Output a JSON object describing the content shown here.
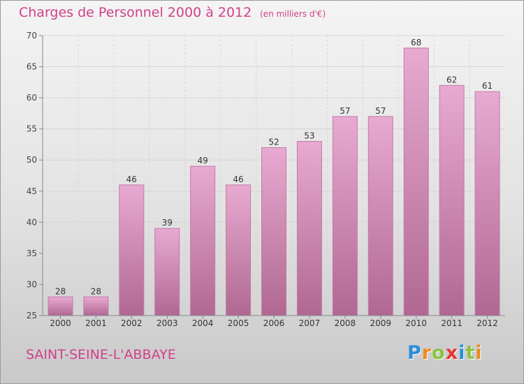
{
  "header": {
    "title": "Charges de Personnel 2000 à 2012",
    "subtitle": "(en milliers d'€)"
  },
  "footer": {
    "commune": "SAINT-SEINE-L'ABBAYE",
    "brand": "Proxiti",
    "brand_letters": [
      {
        "ch": "P",
        "color": "#2a8fd6"
      },
      {
        "ch": "r",
        "color": "#f08a1c"
      },
      {
        "ch": "o",
        "color": "#8cc43f"
      },
      {
        "ch": "x",
        "color": "#e8342e"
      },
      {
        "ch": "i",
        "color": "#2a8fd6"
      },
      {
        "ch": "t",
        "color": "#8cc43f"
      },
      {
        "ch": "i",
        "color": "#f08a1c"
      }
    ]
  },
  "colors": {
    "accent": "#d0408a",
    "bar_top": "#e8aad2",
    "bar_bottom": "#b06892",
    "bar_edge": "#c27aa4"
  },
  "chart_data": {
    "type": "bar",
    "title": "Charges de Personnel 2000 à 2012",
    "subtitle": "(en milliers d'€)",
    "categories": [
      "2000",
      "2001",
      "2002",
      "2003",
      "2004",
      "2005",
      "2006",
      "2007",
      "2008",
      "2009",
      "2010",
      "2011",
      "2012"
    ],
    "values": [
      28,
      28,
      46,
      39,
      49,
      46,
      52,
      53,
      57,
      57,
      68,
      62,
      61
    ],
    "data_labels": [
      "28",
      "28",
      "46",
      "39",
      "49",
      "46",
      "52",
      "53",
      "57",
      "57",
      "68",
      "62",
      "61"
    ],
    "ylim": [
      25,
      70
    ],
    "yticks": [
      25,
      30,
      35,
      40,
      45,
      50,
      55,
      60,
      65,
      70
    ],
    "ytick_labels": [
      "25",
      "30",
      "35",
      "40",
      "45",
      "50",
      "55",
      "60",
      "65",
      "70"
    ],
    "grid": true,
    "xlabel": "",
    "ylabel": ""
  }
}
